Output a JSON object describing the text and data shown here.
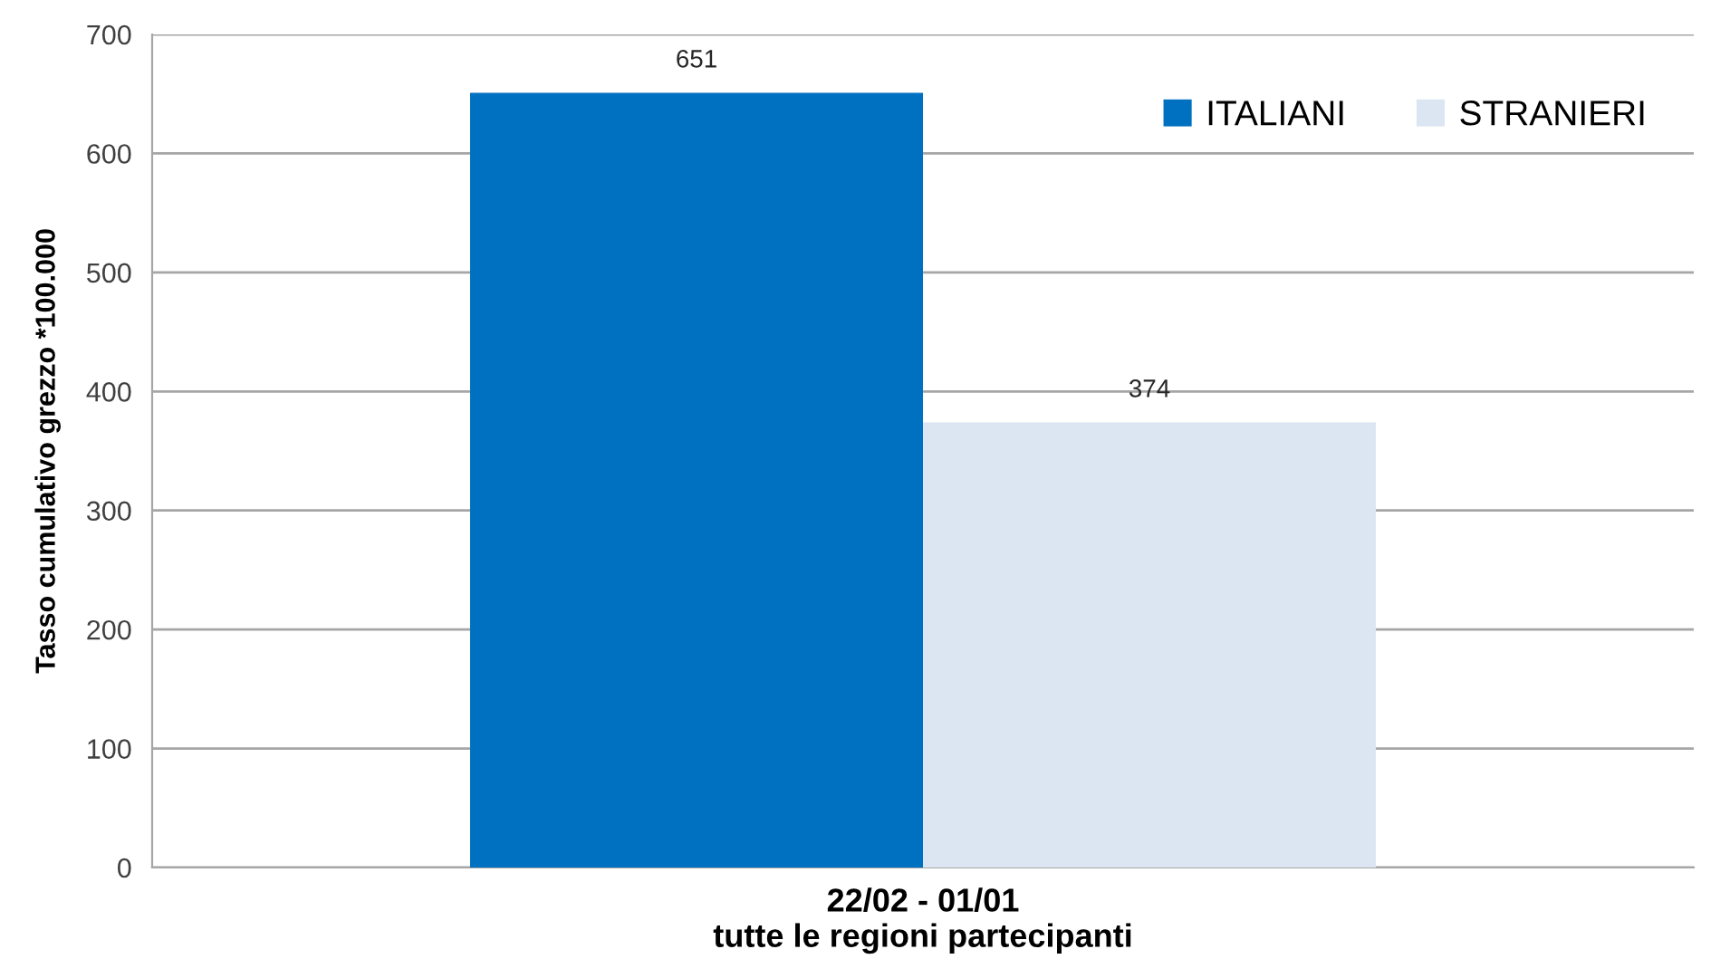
{
  "chart_data": {
    "type": "bar",
    "categories": [
      "22/02 - 01/01"
    ],
    "xlabel": "tutte le regioni partecipanti",
    "ylabel": "Tasso cumulativo grezzo *100.000",
    "series": [
      {
        "name": "ITALIANI",
        "color": "#0070c0",
        "values": [
          651
        ]
      },
      {
        "name": "STRANIERI",
        "color": "#dce6f2",
        "values": [
          374
        ]
      }
    ],
    "ylim": [
      0,
      700
    ],
    "yticks": [
      0,
      100,
      200,
      300,
      400,
      500,
      600,
      700
    ],
    "grid": "y",
    "legend": "top right",
    "data_labels": true
  }
}
